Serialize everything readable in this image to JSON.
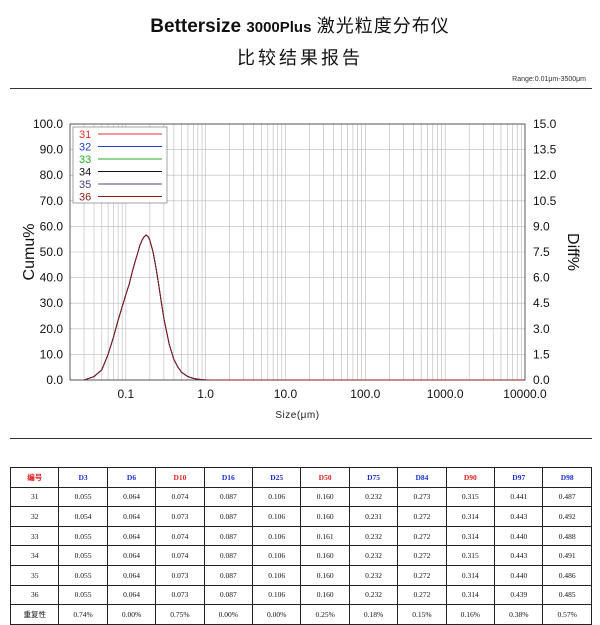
{
  "header": {
    "brand": "Bettersize",
    "model": "3000Plus",
    "title_cn": "激光粒度分布仪",
    "subtitle": "比较结果报告",
    "range": "Range:0.01μm-3500μm"
  },
  "chart_data": {
    "type": "line",
    "xlabel": "Size(μm)",
    "ylabel_left": "Cumu%",
    "ylabel_right": "Diff%",
    "x_scale": "log",
    "xlim": [
      0.02,
      10000
    ],
    "x_ticks": [
      "0.1",
      "1.0",
      "10.0",
      "100.0",
      "1000.0",
      "10000.0"
    ],
    "x_tick_values": [
      0.1,
      1,
      10,
      100,
      1000,
      10000
    ],
    "ylim_left": [
      0,
      100
    ],
    "ylim_right": [
      0,
      15
    ],
    "y_ticks_left": [
      "0.0",
      "10.0",
      "20.0",
      "30.0",
      "40.0",
      "50.0",
      "60.0",
      "70.0",
      "80.0",
      "90.0",
      "100.0"
    ],
    "y_ticks_right": [
      "0.0",
      "1.5",
      "3.0",
      "4.5",
      "6.0",
      "7.5",
      "9.0",
      "10.5",
      "12.0",
      "13.5",
      "15.0"
    ],
    "grid": true,
    "legend_position": "top-left",
    "series": [
      {
        "name": "31",
        "color": "#e03030"
      },
      {
        "name": "32",
        "color": "#2040d0"
      },
      {
        "name": "33",
        "color": "#20b020"
      },
      {
        "name": "34",
        "color": "#111111"
      },
      {
        "name": "35",
        "color": "#444488"
      },
      {
        "name": "36",
        "color": "#8b1a1a"
      }
    ],
    "curve": {
      "x": [
        0.03,
        0.04,
        0.05,
        0.06,
        0.07,
        0.08,
        0.09,
        0.1,
        0.11,
        0.12,
        0.13,
        0.14,
        0.15,
        0.16,
        0.17,
        0.18,
        0.19,
        0.2,
        0.22,
        0.24,
        0.26,
        0.28,
        0.3,
        0.35,
        0.4,
        0.45,
        0.5,
        0.6,
        0.7,
        0.8,
        0.9,
        1.0,
        1.2,
        10000
      ],
      "y_diff": [
        0,
        0.2,
        0.6,
        1.5,
        2.5,
        3.5,
        4.3,
        5.0,
        5.6,
        6.3,
        6.9,
        7.4,
        7.9,
        8.2,
        8.4,
        8.5,
        8.4,
        8.2,
        7.5,
        6.5,
        5.5,
        4.5,
        3.6,
        2.1,
        1.2,
        0.75,
        0.45,
        0.2,
        0.1,
        0.05,
        0.02,
        0.01,
        0,
        0
      ]
    }
  },
  "table": {
    "headers": [
      {
        "text": "编号",
        "color": "#e02020"
      },
      {
        "text": "D3",
        "color": "#1c2fd0"
      },
      {
        "text": "D6",
        "color": "#1c2fd0"
      },
      {
        "text": "D10",
        "color": "#e02020"
      },
      {
        "text": "D16",
        "color": "#1c2fd0"
      },
      {
        "text": "D25",
        "color": "#1c2fd0"
      },
      {
        "text": "D50",
        "color": "#e02020"
      },
      {
        "text": "D75",
        "color": "#1c2fd0"
      },
      {
        "text": "D84",
        "color": "#1c2fd0"
      },
      {
        "text": "D90",
        "color": "#e02020"
      },
      {
        "text": "D97",
        "color": "#1c2fd0"
      },
      {
        "text": "D98",
        "color": "#1c2fd0"
      }
    ],
    "rows": [
      [
        "31",
        "0.055",
        "0.064",
        "0.074",
        "0.087",
        "0.106",
        "0.160",
        "0.232",
        "0.273",
        "0.315",
        "0.441",
        "0.487"
      ],
      [
        "32",
        "0.054",
        "0.064",
        "0.073",
        "0.087",
        "0.106",
        "0.160",
        "0.231",
        "0.272",
        "0.314",
        "0.443",
        "0.492"
      ],
      [
        "33",
        "0.055",
        "0.064",
        "0.074",
        "0.087",
        "0.106",
        "0.161",
        "0.232",
        "0.272",
        "0.314",
        "0.440",
        "0.488"
      ],
      [
        "34",
        "0.055",
        "0.064",
        "0.074",
        "0.087",
        "0.106",
        "0.160",
        "0.232",
        "0.272",
        "0.315",
        "0.443",
        "0.491"
      ],
      [
        "35",
        "0.055",
        "0.064",
        "0.073",
        "0.087",
        "0.106",
        "0.160",
        "0.232",
        "0.272",
        "0.314",
        "0.440",
        "0.486"
      ],
      [
        "36",
        "0.055",
        "0.064",
        "0.073",
        "0.087",
        "0.106",
        "0.160",
        "0.232",
        "0.272",
        "0.314",
        "0.439",
        "0.485"
      ],
      [
        "重复性",
        "0.74%",
        "0.00%",
        "0.75%",
        "0.00%",
        "0.00%",
        "0.25%",
        "0.18%",
        "0.15%",
        "0.16%",
        "0.38%",
        "0.57%"
      ]
    ]
  }
}
